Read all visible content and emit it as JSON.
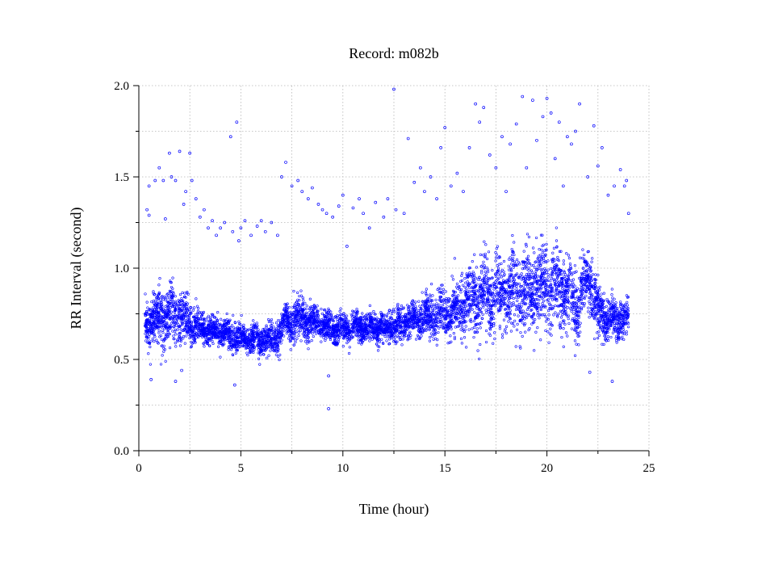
{
  "chart_data": {
    "type": "scatter",
    "title": "Record:  m082b",
    "xlabel": "Time (hour)",
    "ylabel": "RR Interval (second)",
    "xlim": [
      0,
      25
    ],
    "ylim": [
      0.0,
      2.0
    ],
    "xticks": [
      0,
      5,
      10,
      15,
      20,
      25
    ],
    "xtick_labels": [
      "0",
      "5",
      "10",
      "15",
      "20",
      "25"
    ],
    "yticks": [
      0.0,
      0.5,
      1.0,
      1.5,
      2.0
    ],
    "ytick_labels": [
      "0.0",
      "0.5",
      "1.0",
      "1.5",
      "2.0"
    ],
    "grid": true,
    "marker_color": "#0000ff",
    "series": [
      {
        "band_profile": {
          "time": [
            0.3,
            0.8,
            1.5,
            2.0,
            2.5,
            3.0,
            4.0,
            5.0,
            6.0,
            6.8,
            7.2,
            8.0,
            9.0,
            10.0,
            11.0,
            12.0,
            13.0,
            14.0,
            15.0,
            15.5,
            16.0,
            17.0,
            18.0,
            19.0,
            20.0,
            21.0,
            21.5,
            22.0,
            22.5,
            23.0,
            24.0
          ],
          "center": [
            0.7,
            0.72,
            0.74,
            0.74,
            0.7,
            0.67,
            0.65,
            0.62,
            0.6,
            0.62,
            0.7,
            0.72,
            0.68,
            0.66,
            0.68,
            0.67,
            0.7,
            0.73,
            0.75,
            0.78,
            0.82,
            0.85,
            0.86,
            0.88,
            0.9,
            0.87,
            0.8,
            0.95,
            0.76,
            0.72,
            0.72
          ],
          "spread": [
            0.1,
            0.12,
            0.15,
            0.14,
            0.1,
            0.08,
            0.07,
            0.07,
            0.07,
            0.08,
            0.1,
            0.1,
            0.07,
            0.07,
            0.07,
            0.07,
            0.08,
            0.09,
            0.1,
            0.12,
            0.15,
            0.18,
            0.18,
            0.2,
            0.2,
            0.18,
            0.15,
            0.15,
            0.12,
            0.1,
            0.09
          ]
        },
        "outliers": [
          [
            0.4,
            1.32
          ],
          [
            0.5,
            1.45
          ],
          [
            0.5,
            1.29
          ],
          [
            0.6,
            0.39
          ],
          [
            0.8,
            1.48
          ],
          [
            1.0,
            1.55
          ],
          [
            1.2,
            1.48
          ],
          [
            1.3,
            1.27
          ],
          [
            1.5,
            1.63
          ],
          [
            1.6,
            1.5
          ],
          [
            1.8,
            1.48
          ],
          [
            1.8,
            0.38
          ],
          [
            2.0,
            1.64
          ],
          [
            2.1,
            0.44
          ],
          [
            2.2,
            1.35
          ],
          [
            2.3,
            1.42
          ],
          [
            2.5,
            1.63
          ],
          [
            2.6,
            1.48
          ],
          [
            2.8,
            1.38
          ],
          [
            3.0,
            1.28
          ],
          [
            3.2,
            1.32
          ],
          [
            3.4,
            1.22
          ],
          [
            3.6,
            1.26
          ],
          [
            3.8,
            1.18
          ],
          [
            4.0,
            1.22
          ],
          [
            4.2,
            1.25
          ],
          [
            4.5,
            1.72
          ],
          [
            4.6,
            1.2
          ],
          [
            4.7,
            0.36
          ],
          [
            4.8,
            1.8
          ],
          [
            4.9,
            1.15
          ],
          [
            5.0,
            1.22
          ],
          [
            5.2,
            1.26
          ],
          [
            5.5,
            1.18
          ],
          [
            5.8,
            1.23
          ],
          [
            6.0,
            1.26
          ],
          [
            6.2,
            1.2
          ],
          [
            6.5,
            1.25
          ],
          [
            6.8,
            1.18
          ],
          [
            7.0,
            1.5
          ],
          [
            7.2,
            1.58
          ],
          [
            7.5,
            1.45
          ],
          [
            7.8,
            1.48
          ],
          [
            8.0,
            1.42
          ],
          [
            8.3,
            1.38
          ],
          [
            8.5,
            1.44
          ],
          [
            8.8,
            1.35
          ],
          [
            9.0,
            1.32
          ],
          [
            9.2,
            1.3
          ],
          [
            9.3,
            0.41
          ],
          [
            9.3,
            0.23
          ],
          [
            9.5,
            1.28
          ],
          [
            9.8,
            1.34
          ],
          [
            10.0,
            1.4
          ],
          [
            10.2,
            1.12
          ],
          [
            10.5,
            1.33
          ],
          [
            10.8,
            1.38
          ],
          [
            11.0,
            1.3
          ],
          [
            11.3,
            1.22
          ],
          [
            11.6,
            1.36
          ],
          [
            12.0,
            1.28
          ],
          [
            12.2,
            1.38
          ],
          [
            12.5,
            1.98
          ],
          [
            12.6,
            1.32
          ],
          [
            13.0,
            1.3
          ],
          [
            13.2,
            1.71
          ],
          [
            13.5,
            1.47
          ],
          [
            13.8,
            1.55
          ],
          [
            14.0,
            1.42
          ],
          [
            14.3,
            1.5
          ],
          [
            14.6,
            1.38
          ],
          [
            14.8,
            1.66
          ],
          [
            15.0,
            1.77
          ],
          [
            15.3,
            1.45
          ],
          [
            15.6,
            1.52
          ],
          [
            15.9,
            1.42
          ],
          [
            16.2,
            1.66
          ],
          [
            16.5,
            1.9
          ],
          [
            16.7,
            1.8
          ],
          [
            16.9,
            1.88
          ],
          [
            17.2,
            1.62
          ],
          [
            17.5,
            1.55
          ],
          [
            17.8,
            1.72
          ],
          [
            18.0,
            1.42
          ],
          [
            18.2,
            1.68
          ],
          [
            18.5,
            1.79
          ],
          [
            18.8,
            1.94
          ],
          [
            19.0,
            1.55
          ],
          [
            19.3,
            1.92
          ],
          [
            19.5,
            1.7
          ],
          [
            19.8,
            1.83
          ],
          [
            20.0,
            1.93
          ],
          [
            20.2,
            1.85
          ],
          [
            20.4,
            1.6
          ],
          [
            20.6,
            1.8
          ],
          [
            20.8,
            1.45
          ],
          [
            21.0,
            1.72
          ],
          [
            21.2,
            1.68
          ],
          [
            21.4,
            1.75
          ],
          [
            21.6,
            1.9
          ],
          [
            22.0,
            1.5
          ],
          [
            22.3,
            1.78
          ],
          [
            22.5,
            1.56
          ],
          [
            22.7,
            1.66
          ],
          [
            23.0,
            1.4
          ],
          [
            23.3,
            1.45
          ],
          [
            23.6,
            1.54
          ],
          [
            23.8,
            1.45
          ],
          [
            23.9,
            1.48
          ],
          [
            23.2,
            0.38
          ],
          [
            22.1,
            0.43
          ],
          [
            24.0,
            1.3
          ]
        ]
      }
    ]
  }
}
